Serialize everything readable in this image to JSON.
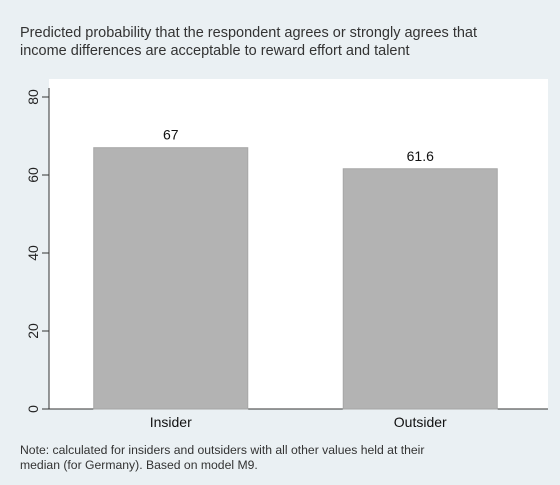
{
  "chart_data": {
    "type": "bar",
    "title_lines": [
      "Predicted probability that the respondent agrees or strongly agrees that",
      "income differences are acceptable to reward effort and talent"
    ],
    "categories": [
      "Insider",
      "Outsider"
    ],
    "values": [
      67,
      61.6
    ],
    "value_labels": [
      "67",
      "61.6"
    ],
    "xlabel": "",
    "ylabel": "",
    "ylim": [
      0,
      80
    ],
    "yticks": [
      0,
      20,
      40,
      60,
      80
    ],
    "ytick_labels": [
      "0",
      "20",
      "40",
      "60",
      "80"
    ],
    "grid": false,
    "legend": "none",
    "bar_color": "#b3b3b3",
    "bar_edge_color": "#a6a6a6",
    "plot_background": "#ffffff",
    "figure_background": "#eaf0f3",
    "note_lines": [
      "Note: calculated for insiders and outsiders with all other values held at their",
      "median (for Germany). Based on model M9."
    ]
  }
}
